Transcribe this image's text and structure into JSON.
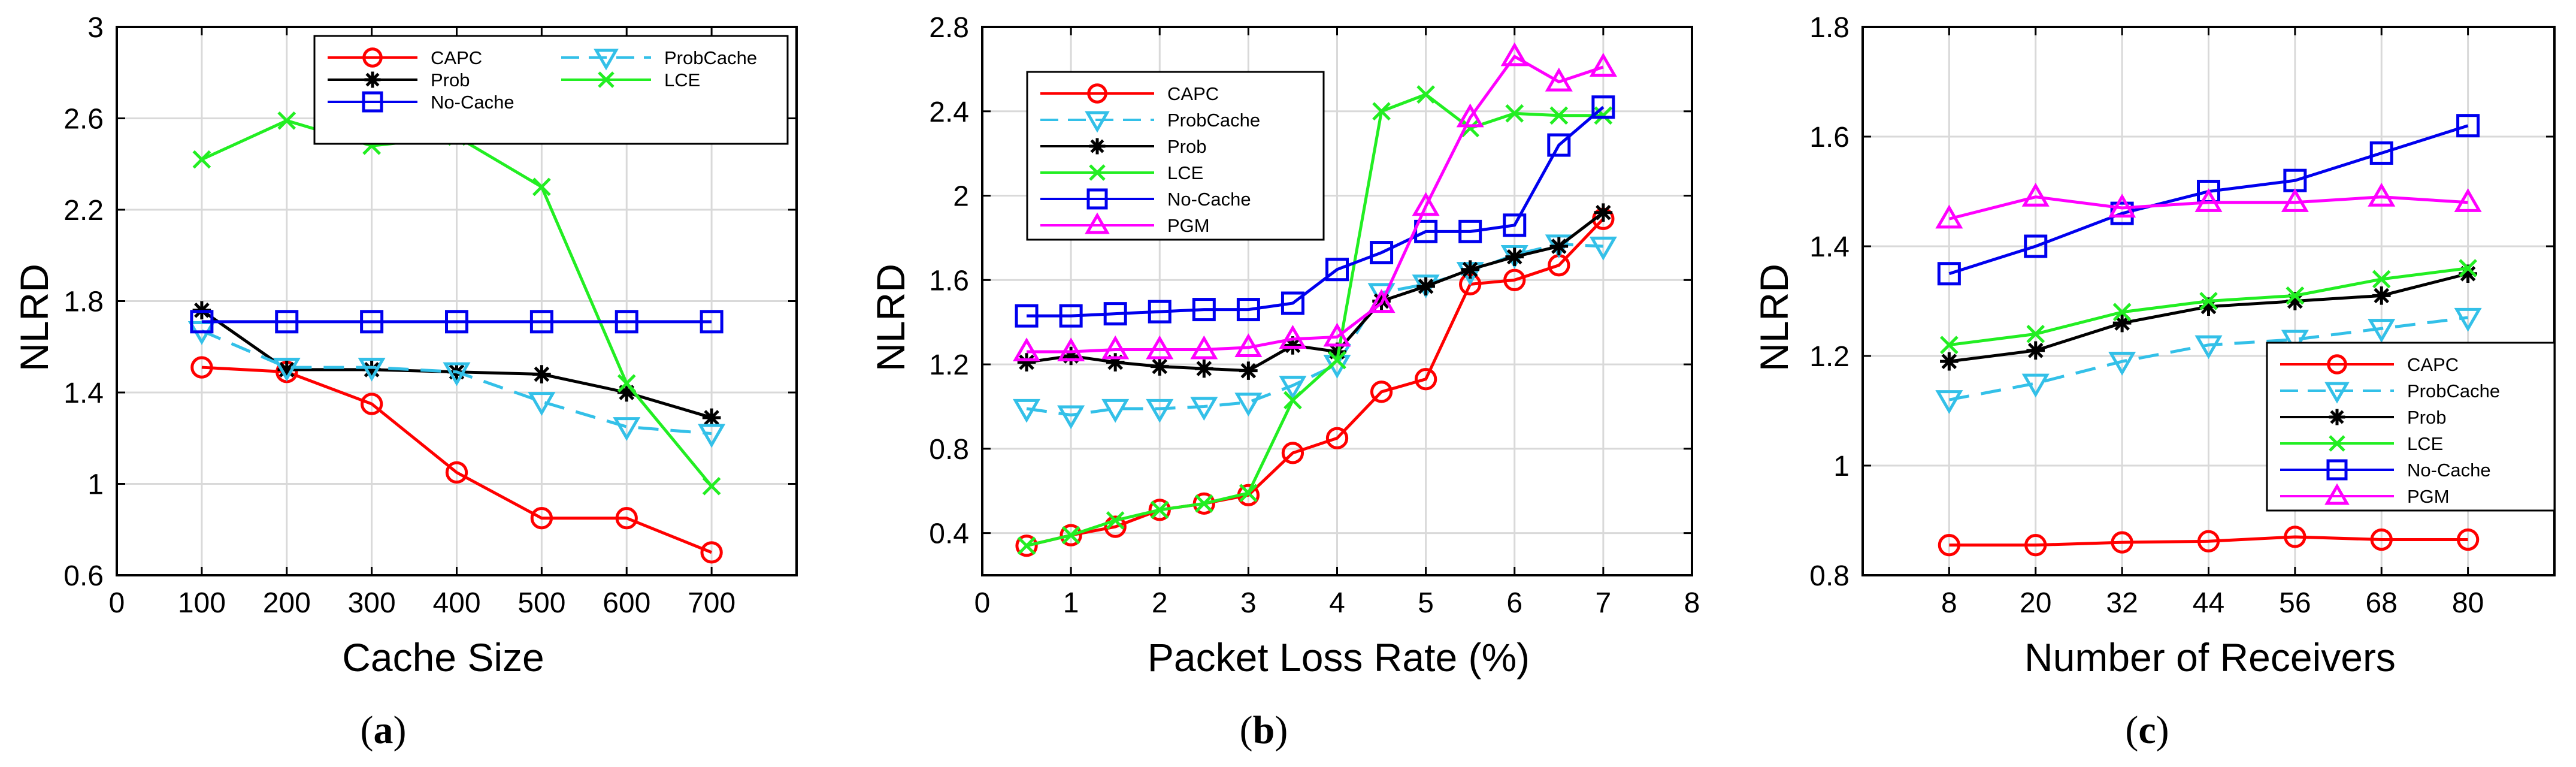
{
  "figure": {
    "colors": {
      "CAPC": "#ff0000",
      "ProbCache": "#33c0e8",
      "Prob": "#000000",
      "LCE": "#22ee22",
      "No-Cache": "#0000ee",
      "PGM": "#ff00ff",
      "grid": "#d9d9d9",
      "axis": "#000000"
    }
  },
  "chart_data": [
    {
      "id": "a",
      "type": "line",
      "panel_label": "a",
      "xlabel": "Cache Size",
      "ylabel": "NLRD",
      "xlim": [
        0,
        800
      ],
      "ylim": [
        0.6,
        3
      ],
      "xticks": [
        0,
        100,
        200,
        300,
        400,
        500,
        600,
        700
      ],
      "xtick_labels": [
        "0",
        "100",
        "200",
        "300",
        "400",
        "500",
        "600",
        "700"
      ],
      "yticks": [
        0.6,
        1,
        1.4,
        1.8,
        2.2,
        2.6,
        3
      ],
      "ytick_labels": [
        "0.6",
        "1",
        "1.4",
        "1.8",
        "2.2",
        "2.6",
        "3"
      ],
      "grid": true,
      "legend_position": "top-right",
      "legend_columns": 2,
      "legend_order": [
        "CAPC",
        "ProbCache",
        "Prob",
        "LCE",
        "No-Cache"
      ],
      "x": [
        100,
        200,
        300,
        400,
        500,
        600,
        700
      ],
      "series": [
        {
          "name": "CAPC",
          "marker": "circle",
          "dash": "solid",
          "values": [
            1.51,
            1.49,
            1.35,
            1.05,
            0.85,
            0.85,
            0.7
          ]
        },
        {
          "name": "Prob",
          "marker": "asterisk",
          "dash": "solid",
          "values": [
            1.76,
            1.5,
            1.5,
            1.49,
            1.48,
            1.4,
            1.29
          ]
        },
        {
          "name": "ProbCache",
          "marker": "triangle-down",
          "dash": "dashed",
          "values": [
            1.67,
            1.51,
            1.51,
            1.49,
            1.36,
            1.25,
            1.22
          ]
        },
        {
          "name": "LCE",
          "marker": "x",
          "dash": "solid",
          "values": [
            2.42,
            2.59,
            2.48,
            2.52,
            2.3,
            1.44,
            0.99
          ]
        },
        {
          "name": "No-Cache",
          "marker": "square",
          "dash": "solid",
          "values": [
            1.71,
            1.71,
            1.71,
            1.71,
            1.71,
            1.71,
            1.71
          ]
        }
      ]
    },
    {
      "id": "b",
      "type": "line",
      "panel_label": "b",
      "xlabel": "Packet Loss Rate (%)",
      "ylabel": "NLRD",
      "xlim": [
        0,
        8
      ],
      "ylim": [
        0.2,
        2.8
      ],
      "xticks": [
        0,
        1,
        2,
        3,
        4,
        5,
        6,
        7,
        8
      ],
      "xtick_labels": [
        "0",
        "1",
        "2",
        "3",
        "4",
        "5",
        "6",
        "7",
        "8"
      ],
      "yticks": [
        0.4,
        0.8,
        1.2,
        1.6,
        2,
        2.4,
        2.8
      ],
      "ytick_labels": [
        "0.4",
        "0.8",
        "1.2",
        "1.6",
        "2",
        "2.4",
        "2.8"
      ],
      "grid": true,
      "legend_position": "top-left",
      "legend_columns": 1,
      "legend_order": [
        "CAPC",
        "ProbCache",
        "Prob",
        "LCE",
        "No-Cache",
        "PGM"
      ],
      "x": [
        0.5,
        1,
        1.5,
        2,
        2.5,
        3,
        3.5,
        4,
        4.5,
        5,
        5.5,
        6,
        6.5,
        7
      ],
      "series": [
        {
          "name": "CAPC",
          "marker": "circle",
          "dash": "solid",
          "values": [
            0.34,
            0.39,
            0.43,
            0.51,
            0.54,
            0.58,
            0.78,
            0.85,
            1.07,
            1.13,
            1.58,
            1.6,
            1.67,
            1.89
          ]
        },
        {
          "name": "ProbCache",
          "marker": "triangle-down",
          "dash": "dashed",
          "values": [
            0.99,
            0.96,
            0.99,
            0.99,
            1.0,
            1.02,
            1.1,
            1.2,
            1.54,
            1.58,
            1.64,
            1.72,
            1.77,
            1.76
          ]
        },
        {
          "name": "Prob",
          "marker": "asterisk",
          "dash": "solid",
          "values": [
            1.21,
            1.24,
            1.21,
            1.19,
            1.18,
            1.17,
            1.29,
            1.26,
            1.5,
            1.57,
            1.65,
            1.71,
            1.76,
            1.92
          ]
        },
        {
          "name": "LCE",
          "marker": "x",
          "dash": "solid",
          "values": [
            0.34,
            0.39,
            0.46,
            0.51,
            0.54,
            0.59,
            1.03,
            1.22,
            2.4,
            2.48,
            2.32,
            2.39,
            2.38,
            2.38
          ]
        },
        {
          "name": "No-Cache",
          "marker": "square",
          "dash": "solid",
          "values": [
            1.43,
            1.43,
            1.44,
            1.45,
            1.46,
            1.46,
            1.49,
            1.65,
            1.73,
            1.83,
            1.83,
            1.86,
            2.24,
            2.42
          ]
        },
        {
          "name": "PGM",
          "marker": "triangle-up",
          "dash": "solid",
          "values": [
            1.26,
            1.26,
            1.27,
            1.27,
            1.27,
            1.28,
            1.32,
            1.33,
            1.49,
            1.95,
            2.37,
            2.66,
            2.54,
            2.61
          ]
        }
      ]
    },
    {
      "id": "c",
      "type": "line",
      "panel_label": "c",
      "xlabel": "Number of Receivers",
      "ylabel": "NLRD",
      "xlim": [
        -4,
        92
      ],
      "ylim": [
        0.8,
        1.8
      ],
      "xticks": [
        8,
        20,
        32,
        44,
        56,
        68,
        80
      ],
      "xtick_labels": [
        "8",
        "20",
        "32",
        "44",
        "56",
        "68",
        "80"
      ],
      "yticks": [
        0.8,
        1,
        1.2,
        1.4,
        1.6,
        1.8
      ],
      "ytick_labels": [
        "0.8",
        "1",
        "1.2",
        "1.4",
        "1.6",
        "1.8"
      ],
      "grid": true,
      "legend_position": "bottom-right",
      "legend_columns": 1,
      "legend_order": [
        "CAPC",
        "ProbCache",
        "Prob",
        "LCE",
        "No-Cache",
        "PGM"
      ],
      "x": [
        8,
        20,
        32,
        44,
        56,
        68,
        80
      ],
      "series": [
        {
          "name": "CAPC",
          "marker": "circle",
          "dash": "solid",
          "values": [
            0.855,
            0.855,
            0.86,
            0.862,
            0.87,
            0.865,
            0.865
          ]
        },
        {
          "name": "ProbCache",
          "marker": "triangle-down",
          "dash": "dashed",
          "values": [
            1.12,
            1.15,
            1.19,
            1.22,
            1.23,
            1.25,
            1.27
          ]
        },
        {
          "name": "Prob",
          "marker": "asterisk",
          "dash": "solid",
          "values": [
            1.19,
            1.21,
            1.26,
            1.29,
            1.3,
            1.31,
            1.35
          ]
        },
        {
          "name": "LCE",
          "marker": "x",
          "dash": "solid",
          "values": [
            1.22,
            1.24,
            1.28,
            1.3,
            1.31,
            1.34,
            1.36
          ]
        },
        {
          "name": "No-Cache",
          "marker": "square",
          "dash": "solid",
          "values": [
            1.35,
            1.4,
            1.46,
            1.5,
            1.52,
            1.57,
            1.62
          ]
        },
        {
          "name": "PGM",
          "marker": "triangle-up",
          "dash": "solid",
          "values": [
            1.45,
            1.49,
            1.47,
            1.48,
            1.48,
            1.49,
            1.48
          ]
        }
      ]
    }
  ]
}
